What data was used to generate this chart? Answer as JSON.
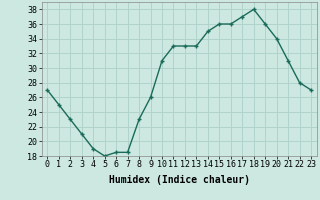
{
  "x": [
    0,
    1,
    2,
    3,
    4,
    5,
    6,
    7,
    8,
    9,
    10,
    11,
    12,
    13,
    14,
    15,
    16,
    17,
    18,
    19,
    20,
    21,
    22,
    23
  ],
  "y": [
    27,
    25,
    23,
    21,
    19,
    18,
    18.5,
    18.5,
    23,
    26,
    31,
    33,
    33,
    33,
    35,
    36,
    36,
    37,
    38,
    36,
    34,
    31,
    28,
    27
  ],
  "line_color": "#1a6b5a",
  "marker": "+",
  "marker_size": 3,
  "background_color": "#cce8e0",
  "grid_color": "#b0d4cc",
  "xlabel": "Humidex (Indice chaleur)",
  "ylabel": "",
  "ylim": [
    18,
    39
  ],
  "xlim": [
    -0.5,
    23.5
  ],
  "yticks": [
    18,
    20,
    22,
    24,
    26,
    28,
    30,
    32,
    34,
    36,
    38
  ],
  "xticks": [
    0,
    1,
    2,
    3,
    4,
    5,
    6,
    7,
    8,
    9,
    10,
    11,
    12,
    13,
    14,
    15,
    16,
    17,
    18,
    19,
    20,
    21,
    22,
    23
  ],
  "xlabel_fontsize": 7,
  "tick_fontsize": 6,
  "line_width": 1.0,
  "marker_edge_width": 1.0
}
